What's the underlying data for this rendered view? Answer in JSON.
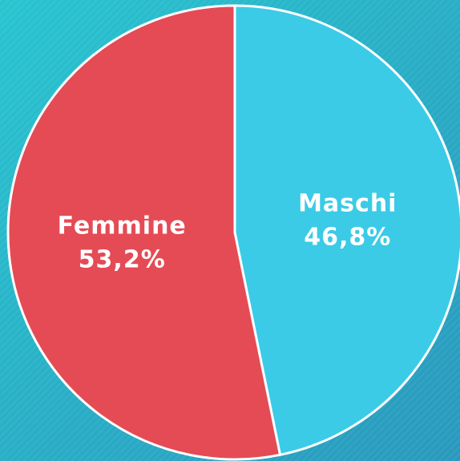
{
  "chart_data": {
    "type": "pie",
    "categories": [
      "Maschi",
      "Femmine"
    ],
    "values": [
      46.8,
      53.2
    ],
    "value_labels": [
      "46,8%",
      "53,2%"
    ],
    "colors": [
      "#3bcbe6",
      "#e54b55"
    ]
  }
}
